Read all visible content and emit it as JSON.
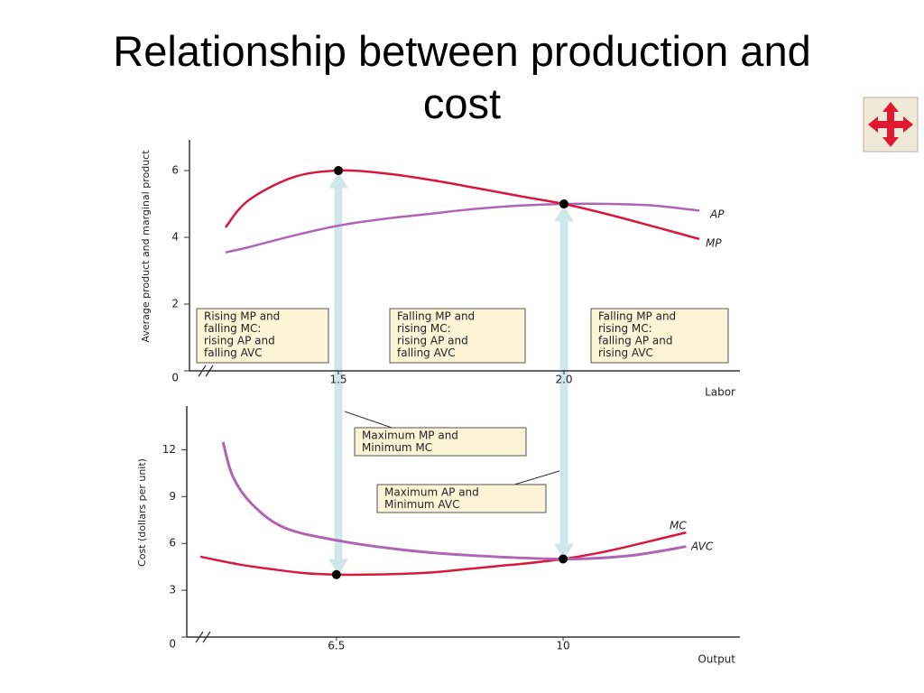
{
  "title": "Relationship between production and cost",
  "chart_data": [
    {
      "type": "line",
      "x_label": "Labor",
      "y_label": "Average product and marginal product",
      "xlim": [
        1.17,
        2.39
      ],
      "ylim": [
        0,
        6.92
      ],
      "xticks": [
        1.5,
        {
          "value": 2,
          "label": "2.0"
        }
      ],
      "yticks": [
        0,
        2,
        4,
        6
      ],
      "series": [
        {
          "name": "AP",
          "color": "#b064b4",
          "x": [
            1.25,
            1.3,
            1.4,
            1.5,
            1.6,
            1.7,
            1.8,
            1.9,
            2.0,
            2.1,
            2.2,
            2.3
          ],
          "values": [
            3.55,
            3.7,
            4.05,
            4.35,
            4.55,
            4.7,
            4.85,
            4.95,
            5,
            5,
            4.95,
            4.8
          ]
        },
        {
          "name": "MP",
          "color": "#d8183c",
          "x": [
            1.25,
            1.3,
            1.4,
            1.5,
            1.6,
            1.7,
            1.8,
            1.9,
            2.0,
            2.1,
            2.2,
            2.3
          ],
          "values": [
            4.3,
            5.1,
            5.8,
            6,
            5.92,
            5.73,
            5.49,
            5.24,
            5,
            4.68,
            4.32,
            3.95
          ]
        }
      ],
      "markers": [
        {
          "x": 1.5,
          "y": 6
        },
        {
          "x": 2,
          "y": 5
        }
      ],
      "annotations": [
        {
          "lines": [
            "Rising MP and",
            "falling MC:",
            "rising AP and",
            "falling AVC"
          ]
        },
        {
          "lines": [
            "Falling MP and",
            "rising MC:",
            "rising AP and",
            "falling AVC"
          ]
        },
        {
          "lines": [
            "Falling MP and",
            "rising MC:",
            "falling AP and",
            "rising AVC"
          ]
        }
      ]
    },
    {
      "type": "line",
      "x_label": "Output",
      "y_label": "Cost (dollars per unit)",
      "xlim": [
        4.19,
        12.73
      ],
      "ylim": [
        0,
        14.8
      ],
      "xticks": [
        6.5,
        10
      ],
      "yticks": [
        0,
        3,
        6,
        9,
        12
      ],
      "series": [
        {
          "name": "MC",
          "color": "#d8183c",
          "x": [
            4.4,
            5,
            5.5,
            6,
            6.5,
            7,
            7.5,
            8,
            8.5,
            9,
            9.5,
            10,
            10.5,
            11,
            11.5,
            11.9
          ],
          "values": [
            5.15,
            4.65,
            4.35,
            4.1,
            4,
            4,
            4.05,
            4.15,
            4.35,
            4.55,
            4.75,
            5,
            5.35,
            5.8,
            6.3,
            6.7
          ]
        },
        {
          "name": "AVC",
          "color": "#b064b4",
          "x": [
            4.75,
            4.9,
            5.2,
            5.7,
            6.5,
            7.5,
            8.5,
            10,
            11,
            11.9
          ],
          "values": [
            12.5,
            10.3,
            8.5,
            7,
            6.2,
            5.6,
            5.25,
            5,
            5.2,
            5.8
          ]
        }
      ],
      "markers": [
        {
          "x": 6.5,
          "y": 4
        },
        {
          "x": 10,
          "y": 5
        }
      ],
      "annotations": [
        {
          "lines": [
            "Maximum MP and",
            "Minimum MC"
          ]
        },
        {
          "lines": [
            "Maximum AP and",
            "Minimum AVC"
          ]
        }
      ]
    }
  ]
}
